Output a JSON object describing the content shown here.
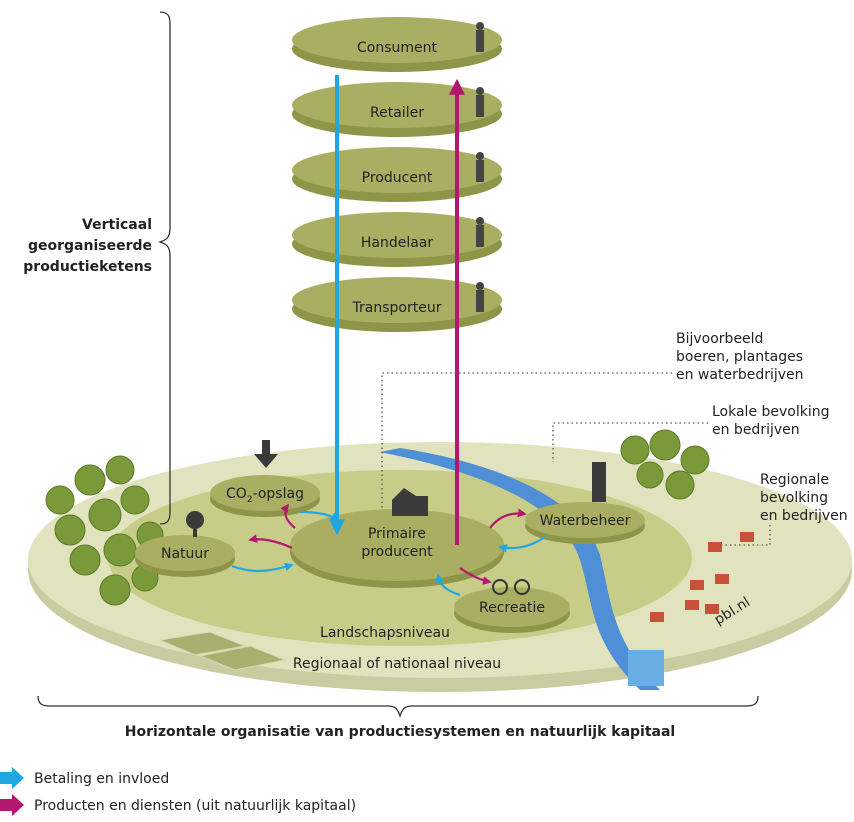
{
  "chain": {
    "label": [
      "Verticaal",
      "georganiseerde",
      "productieketens"
    ],
    "levels": [
      "Consument",
      "Retailer",
      "Producent",
      "Handelaar",
      "Transporteur"
    ]
  },
  "annotations": [
    [
      "Bijvoorbeeld",
      "boeren, plantages",
      "en waterbedrijven"
    ],
    [
      "Lokale bevolking",
      "en bedrijven"
    ],
    [
      "Regionale",
      "bevolking",
      "en bedrijven"
    ]
  ],
  "landscape": {
    "nodes": {
      "co2": {
        "main": "CO",
        "sub": "2",
        "rest": "-opslag"
      },
      "natuur": "Natuur",
      "primaire": [
        "Primaire",
        "producent"
      ],
      "waterbeheer": "Waterbeheer",
      "recreatie": "Recreatie"
    },
    "level": "Landschapsniveau",
    "region": "Regionaal of nationaal niveau",
    "credit": "pbl.nl"
  },
  "horizontal_label": "Horizontale organisatie van productiesystemen en natuurlijk kapitaal",
  "legend": [
    {
      "label": "Betaling en invloed",
      "color": "#1ea7e1"
    },
    {
      "label": "Producten en diensten (uit natuurlijk kapitaal)",
      "color": "#b5166f"
    }
  ]
}
